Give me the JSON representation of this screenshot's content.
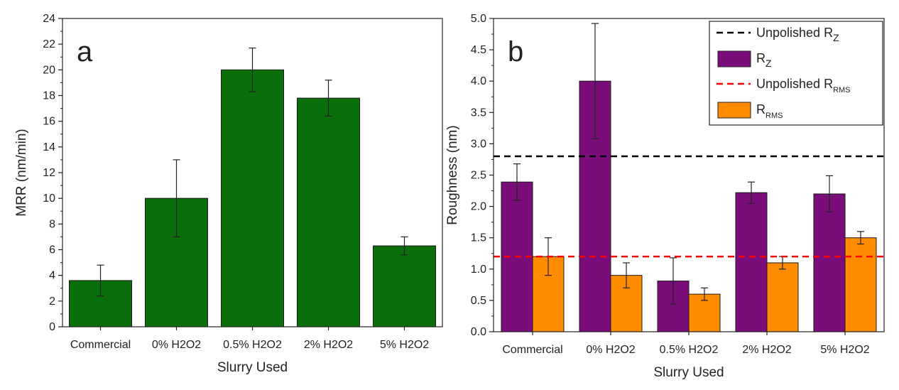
{
  "chart_data": [
    {
      "type": "bar",
      "panel_label": "a",
      "xlabel": "Slurry Used",
      "ylabel": "MRR (nm/min)",
      "categories": [
        "Commercial",
        "0% H2O2",
        "0.5% H2O2",
        "2% H2O2",
        "5% H2O2"
      ],
      "ylim": [
        0,
        24
      ],
      "yticks": [
        "0",
        "2",
        "4",
        "6",
        "8",
        "10",
        "12",
        "14",
        "16",
        "18",
        "20",
        "22",
        "24"
      ],
      "series": [
        {
          "values": [
            3.6,
            10.0,
            20.0,
            17.8,
            6.3
          ],
          "errors": [
            1.2,
            3.0,
            1.7,
            1.4,
            0.7
          ],
          "color": "#0a6e0a"
        }
      ],
      "grid": false,
      "legend": "none"
    },
    {
      "type": "bar",
      "panel_label": "b",
      "xlabel": "Slurry Used",
      "ylabel": "Roughness (nm)",
      "categories": [
        "Commercial",
        "0% H2O2",
        "0.5% H2O2",
        "2% H2O2",
        "5% H2O2"
      ],
      "ylim": [
        0,
        5
      ],
      "yticks": [
        "0.0",
        "0.5",
        "1.0",
        "1.5",
        "2.0",
        "2.5",
        "3.0",
        "3.5",
        "4.0",
        "4.5",
        "5.0"
      ],
      "series": [
        {
          "name": "R",
          "subscript": "Z",
          "values": [
            2.39,
            4.0,
            0.81,
            2.22,
            2.2
          ],
          "errors": [
            0.29,
            0.92,
            0.37,
            0.17,
            0.29
          ],
          "color": "#7b0d7b"
        },
        {
          "name": "R",
          "subscript": "RMS",
          "values": [
            1.2,
            0.9,
            0.6,
            1.1,
            1.5
          ],
          "errors": [
            0.3,
            0.2,
            0.1,
            0.1,
            0.1
          ],
          "color": "#ff8c00"
        }
      ],
      "reference_lines": [
        {
          "name": "Unpolished R",
          "subscript": "Z",
          "value": 2.8,
          "color": "#000000",
          "style": "dashed"
        },
        {
          "name": "Unpolished R",
          "subscript": "RMS",
          "value": 1.2,
          "color": "#ff0000",
          "style": "dashed"
        }
      ],
      "legend_order": [
        "ref0",
        "ser0",
        "ref1",
        "ser1"
      ],
      "grid": false,
      "legend": "top-right"
    }
  ]
}
